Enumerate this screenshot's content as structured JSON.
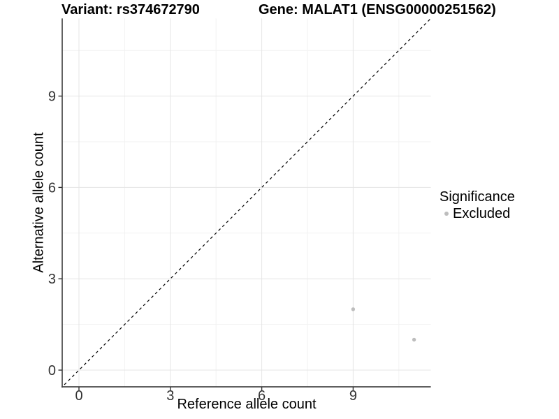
{
  "titles": {
    "variant": "Variant: rs374672790",
    "gene": "Gene: MALAT1 (ENSG00000251562)"
  },
  "axes": {
    "x_label": "Reference allele count",
    "y_label": "Alternative allele count"
  },
  "legend": {
    "title": "Significance",
    "items": [
      {
        "label": "Excluded",
        "color": "#bdbdbd"
      }
    ]
  },
  "colors": {
    "background": "#ffffff",
    "axis_line": "#404040",
    "tick_mark": "#333333",
    "tick_label": "#333333",
    "grid_major": "#e5e5e5",
    "grid_minor": "#f2f2f2",
    "reference_line": "#000000",
    "point": "#bdbdbd"
  },
  "chart_data": {
    "type": "scatter",
    "title": "Variant: rs374672790   Gene: MALAT1 (ENSG00000251562)",
    "xlabel": "Reference allele count",
    "ylabel": "Alternative allele count",
    "xlim": [
      -0.55,
      11.55
    ],
    "ylim": [
      -0.55,
      11.55
    ],
    "x_ticks": [
      0,
      3,
      6,
      9
    ],
    "y_ticks": [
      0,
      3,
      6,
      9
    ],
    "x_minor_ticks": [
      1.5,
      4.5,
      7.5,
      10.5
    ],
    "y_minor_ticks": [
      1.5,
      4.5,
      7.5,
      10.5
    ],
    "grid": true,
    "legend_position": "right",
    "legend_title": "Significance",
    "series": [
      {
        "name": "Excluded",
        "color": "#bdbdbd",
        "points": [
          {
            "x": 9,
            "y": 2
          },
          {
            "x": 11,
            "y": 1
          }
        ]
      }
    ],
    "reference_line": {
      "kind": "identity",
      "slope": 1,
      "intercept": 0,
      "style": "dashed",
      "color": "#000000"
    }
  }
}
